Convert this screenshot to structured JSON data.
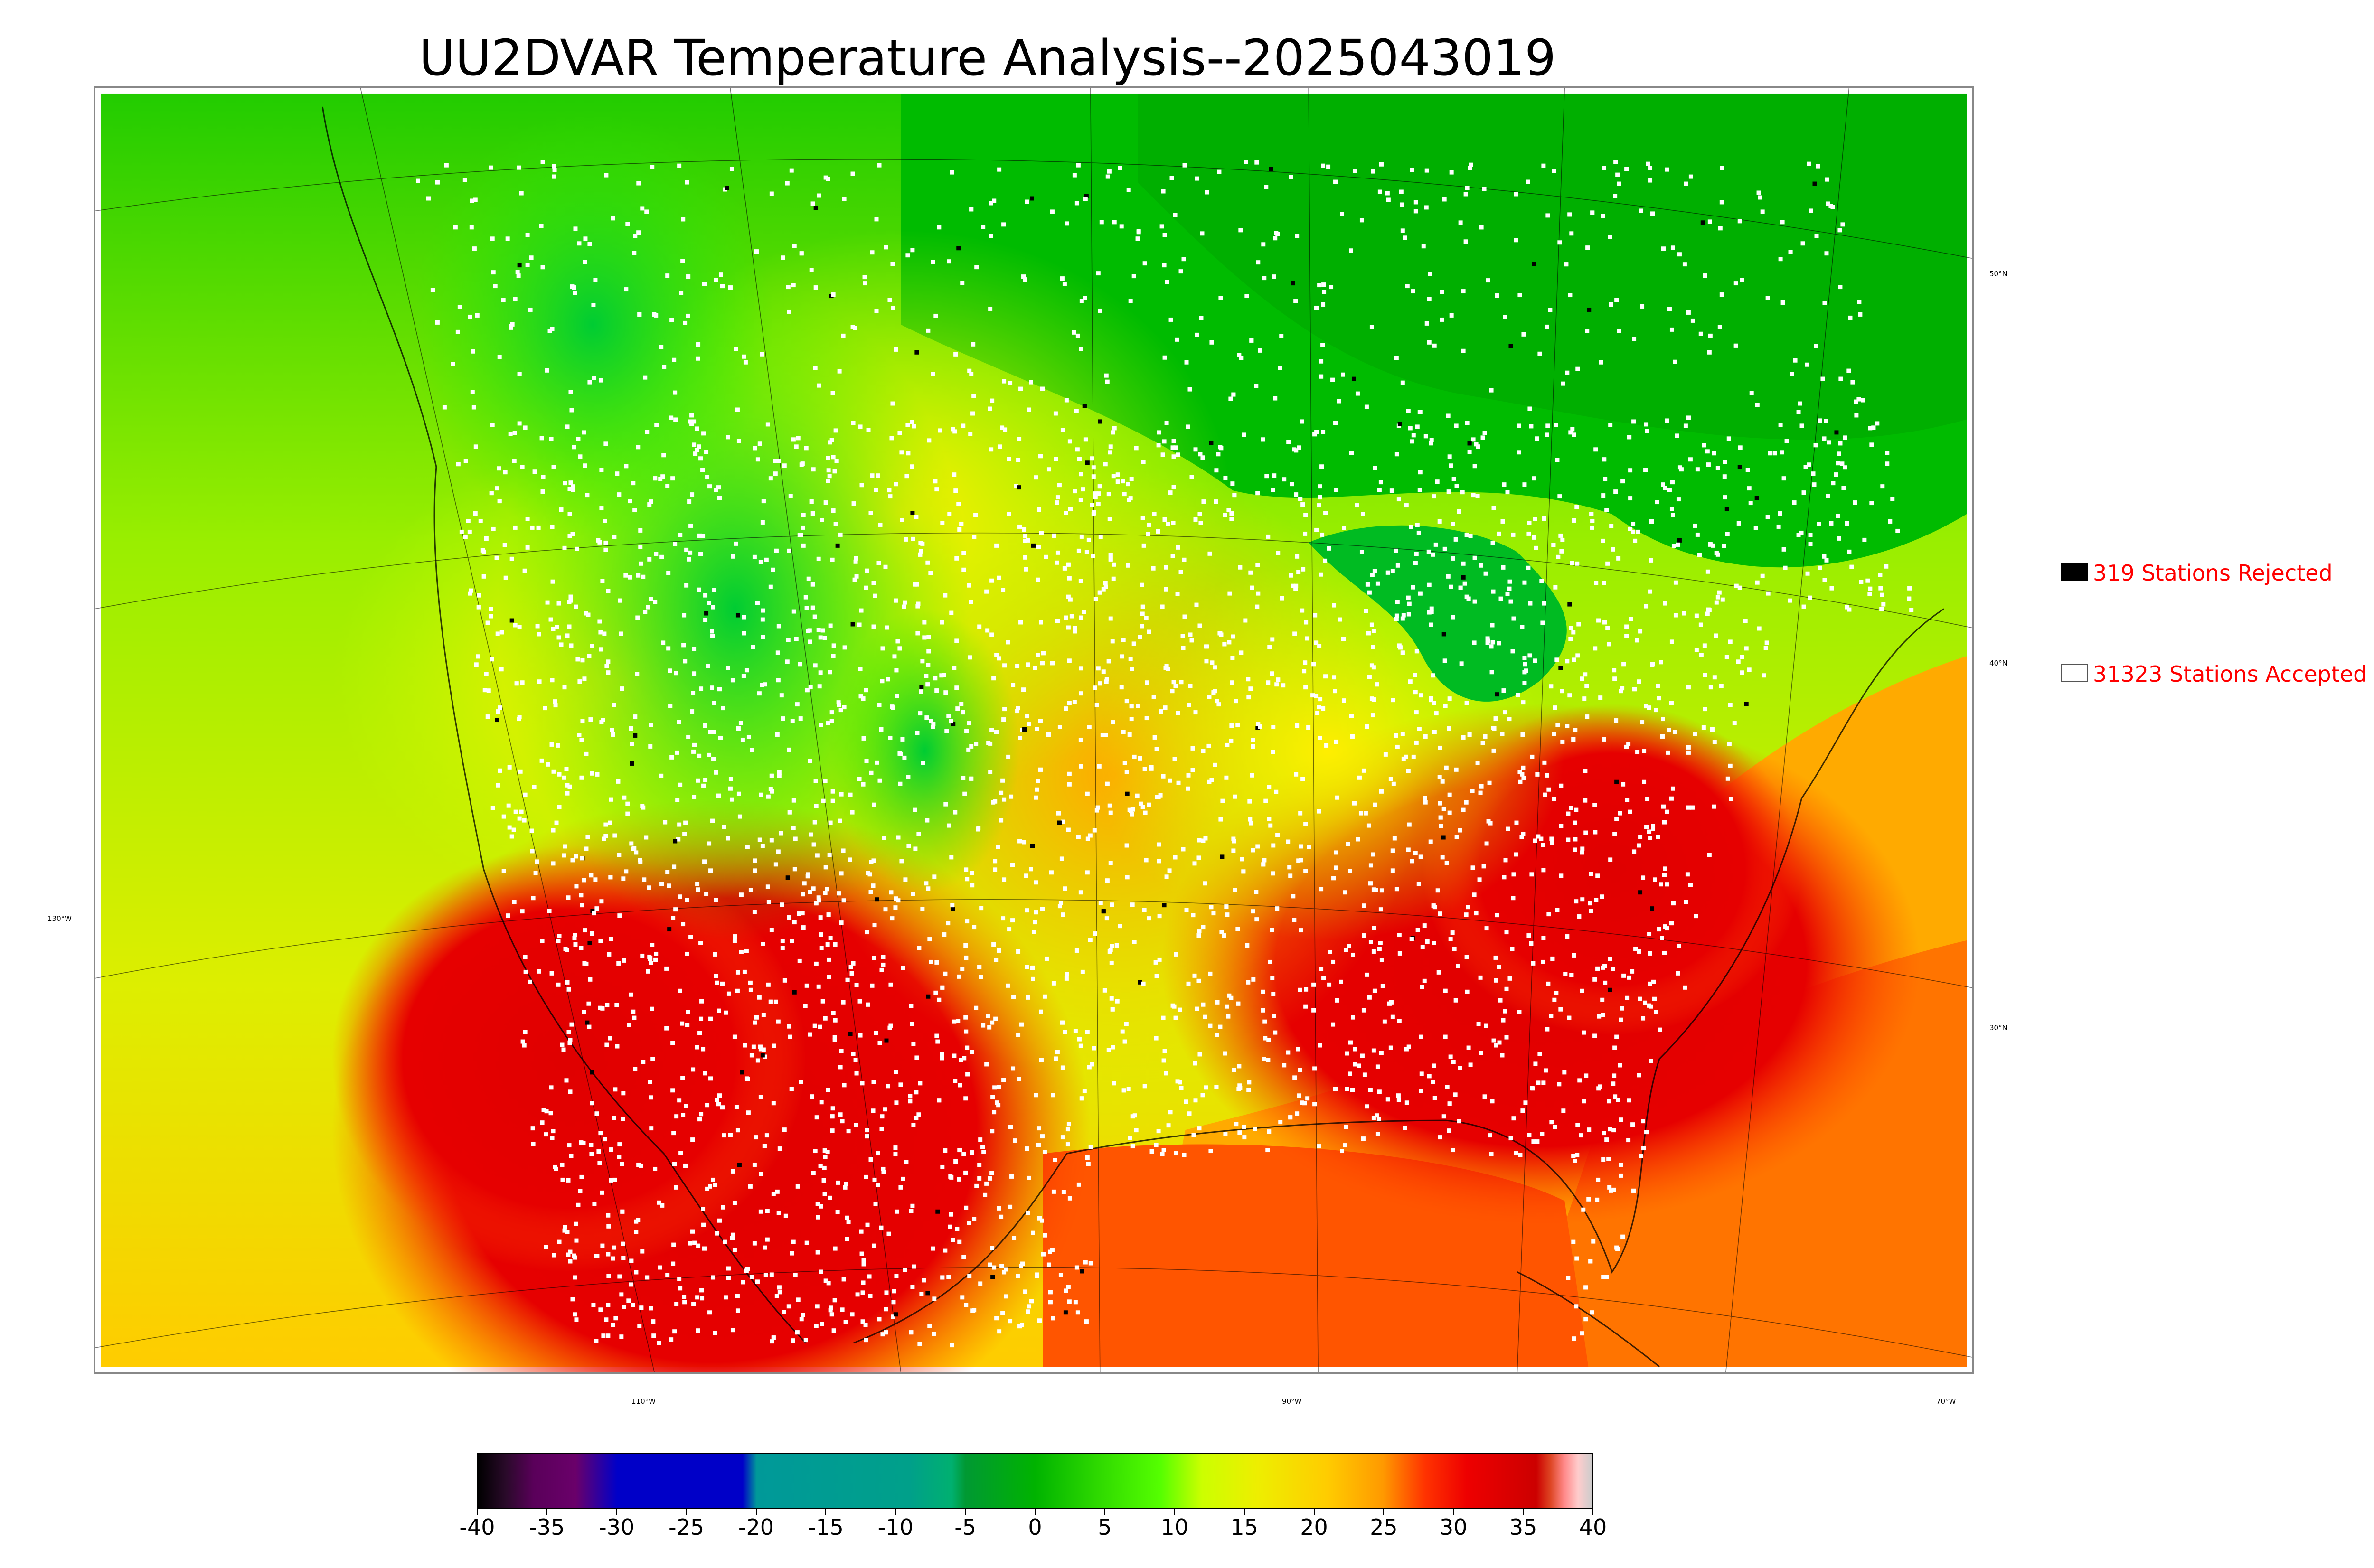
{
  "title": "UU2DVAR Temperature Analysis--2025043019",
  "legend": {
    "rejected": {
      "text": "319 Stations Rejected",
      "swatch_color": "#000000"
    },
    "accepted": {
      "text": "31323 Stations Accepted",
      "swatch_color": "#ffffff"
    }
  },
  "graticule": {
    "longitude_labels": [
      "130°W",
      "110°W",
      "90°W",
      "70°W"
    ],
    "latitude_labels": [
      "50°N",
      "40°N",
      "30°N"
    ]
  },
  "colorbar": {
    "min": -40,
    "max": 40,
    "tick_labels": [
      "-40",
      "-35",
      "-30",
      "-25",
      "-20",
      "-15",
      "-10",
      "-5",
      "0",
      "5",
      "10",
      "15",
      "20",
      "25",
      "30",
      "35",
      "40"
    ],
    "colors": [
      {
        "value": -40,
        "color": "#000000"
      },
      {
        "value": -38,
        "color": "#2a0a2a"
      },
      {
        "value": -36,
        "color": "#5a005a"
      },
      {
        "value": -33,
        "color": "#6a006a"
      },
      {
        "value": -30,
        "color": "#0000c8"
      },
      {
        "value": -21,
        "color": "#0000c8"
      },
      {
        "value": -20,
        "color": "#009999"
      },
      {
        "value": -9,
        "color": "#00a08a"
      },
      {
        "value": -6,
        "color": "#00b070"
      },
      {
        "value": -5,
        "color": "#009933"
      },
      {
        "value": 0,
        "color": "#00b300"
      },
      {
        "value": 5,
        "color": "#33dd00"
      },
      {
        "value": 9,
        "color": "#55ff00"
      },
      {
        "value": 12,
        "color": "#ccff00"
      },
      {
        "value": 16,
        "color": "#eeee00"
      },
      {
        "value": 21,
        "color": "#ffcc00"
      },
      {
        "value": 25,
        "color": "#ff9900"
      },
      {
        "value": 28,
        "color": "#ff3300"
      },
      {
        "value": 31,
        "color": "#ee0000"
      },
      {
        "value": 36,
        "color": "#cc0000"
      },
      {
        "value": 37,
        "color": "#dd4422"
      },
      {
        "value": 38,
        "color": "#ff8888"
      },
      {
        "value": 39,
        "color": "#ffcccc"
      },
      {
        "value": 40,
        "color": "#cccccc"
      }
    ]
  }
}
